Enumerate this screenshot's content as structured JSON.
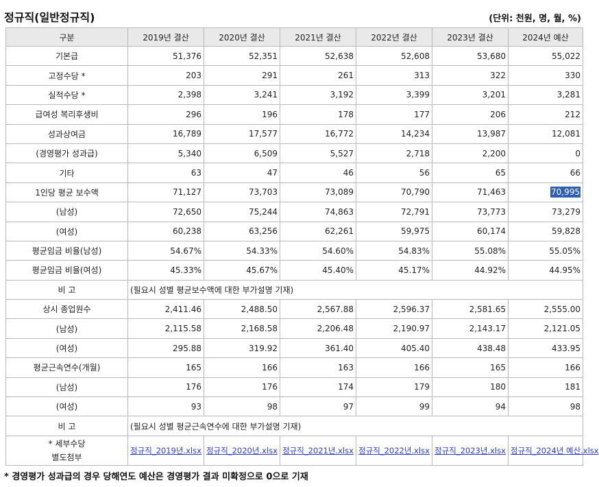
{
  "title": "정규직(일반정규직)",
  "unit": "(단위: 천원, 명, 월, %)",
  "header": {
    "label": "구분",
    "years": [
      "2019년 결산",
      "2020년 결산",
      "2021년 결산",
      "2022년 결산",
      "2023년 결산",
      "2024년 예산"
    ]
  },
  "rows": [
    {
      "label": "기본급",
      "values": [
        "51,376",
        "52,351",
        "52,638",
        "52,608",
        "53,680",
        "55,022"
      ]
    },
    {
      "label": "고정수당 *",
      "values": [
        "203",
        "291",
        "261",
        "313",
        "322",
        "330"
      ]
    },
    {
      "label": "실적수당 *",
      "values": [
        "2,398",
        "3,241",
        "3,192",
        "3,399",
        "3,201",
        "3,281"
      ]
    },
    {
      "label": "급여성 복리후생비",
      "values": [
        "296",
        "196",
        "178",
        "177",
        "206",
        "212"
      ]
    },
    {
      "label": "성과상여금",
      "values": [
        "16,789",
        "17,577",
        "16,772",
        "14,234",
        "13,987",
        "12,081"
      ]
    },
    {
      "label": "(경영평가 성과급)",
      "values": [
        "5,340",
        "6,509",
        "5,527",
        "2,718",
        "2,200",
        "0"
      ]
    },
    {
      "label": "기타",
      "values": [
        "63",
        "47",
        "46",
        "56",
        "65",
        "66"
      ]
    },
    {
      "label": "1인당 평균 보수액",
      "values": [
        "71,127",
        "73,703",
        "73,089",
        "70,790",
        "71,463",
        "70,995"
      ]
    },
    {
      "label": "(남성)",
      "values": [
        "72,650",
        "75,244",
        "74,863",
        "72,791",
        "73,773",
        "73,279"
      ]
    },
    {
      "label": "(여성)",
      "values": [
        "60,238",
        "63,256",
        "62,261",
        "59,975",
        "60,174",
        "59,828"
      ]
    },
    {
      "label": "평균임금 비율(남성)",
      "values": [
        "54.67%",
        "54.33%",
        "54.60%",
        "54.83%",
        "55.08%",
        "55.05%"
      ]
    },
    {
      "label": "평균임금 비율(여성)",
      "values": [
        "45.33%",
        "45.67%",
        "45.40%",
        "45.17%",
        "44.92%",
        "44.95%"
      ]
    },
    {
      "label": "비 고",
      "note": "(필요시 성별 평균보수액에 대한 부가설명 기재)"
    },
    {
      "label": "상시 종업원수",
      "values": [
        "2,411.46",
        "2,488.50",
        "2,567.88",
        "2,596.37",
        "2,581.65",
        "2,555.00"
      ]
    },
    {
      "label": "(남성)",
      "values": [
        "2,115.58",
        "2,168.58",
        "2,206.48",
        "2,190.97",
        "2,143.17",
        "2,121.05"
      ]
    },
    {
      "label": "(여성)",
      "values": [
        "295.88",
        "319.92",
        "361.40",
        "405.40",
        "438.48",
        "433.95"
      ]
    },
    {
      "label": "평균근속연수(개월)",
      "values": [
        "165",
        "166",
        "163",
        "166",
        "165",
        "166"
      ]
    },
    {
      "label": "(남성)",
      "values": [
        "176",
        "176",
        "174",
        "179",
        "180",
        "181"
      ]
    },
    {
      "label": "(여성)",
      "values": [
        "93",
        "98",
        "97",
        "99",
        "94",
        "98"
      ]
    },
    {
      "label": "비 고",
      "note": "(필요시 성별 평균근속연수에 대한 부가설명 기재)"
    }
  ],
  "attachments": {
    "label_line1": "* 세부수당",
    "label_line2": "별도첨부",
    "files": [
      "정규직_2019년.xlsx",
      "정규직_2020년.xlsx",
      "정규직_2021년.xlsx",
      "정규직_2022년.xlsx",
      "정규직_2023년.xlsx",
      "정규직_2024년 예산.xlsx"
    ]
  },
  "selected_cell": {
    "row": 7,
    "col": 5
  },
  "footnote": "* 경영평가 성과급의 경우 당해연도 예산은 경영평가 결과 미확정으로 0으로 기재",
  "colors": {
    "header_bg": "#e9e9e9",
    "border": "#b8b8b8",
    "link": "#2a3bd8",
    "selection": "#2f5fb3"
  }
}
